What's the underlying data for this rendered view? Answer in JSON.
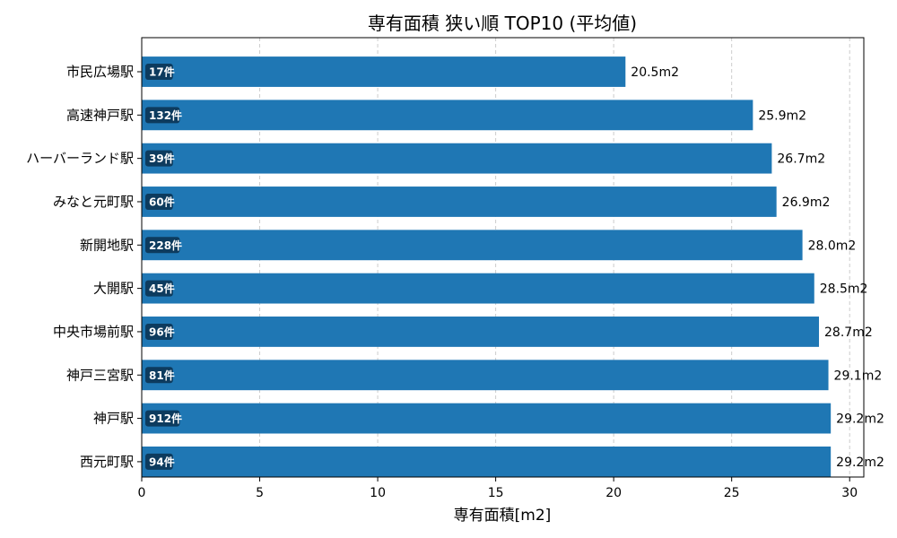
{
  "chart_data": {
    "type": "bar",
    "orientation": "horizontal",
    "title": "専有面積 狭い順 TOP10 (平均値)",
    "xlabel": "専有面積[m2]",
    "ylabel": "",
    "xlim": [
      0,
      30.6
    ],
    "xticks": [
      0,
      5,
      10,
      15,
      20,
      25,
      30
    ],
    "grid": "x-dashed",
    "bar_color": "#1f77b4",
    "badge_color": "#0d3b5e",
    "categories": [
      "市民広場駅",
      "高速神戸駅",
      "ハーバーランド駅",
      "みなと元町駅",
      "新開地駅",
      "大開駅",
      "中央市場前駅",
      "神戸三宮駅",
      "神戸駅",
      "西元町駅"
    ],
    "values": [
      20.5,
      25.9,
      26.7,
      26.9,
      28.0,
      28.5,
      28.7,
      29.1,
      29.2,
      29.2
    ],
    "value_labels": [
      "20.5m2",
      "25.9m2",
      "26.7m2",
      "26.9m2",
      "28.0m2",
      "28.5m2",
      "28.7m2",
      "29.1m2",
      "29.2m2",
      "29.2m2"
    ],
    "counts": [
      "17件",
      "132件",
      "39件",
      "60件",
      "228件",
      "45件",
      "96件",
      "81件",
      "912件",
      "94件"
    ]
  }
}
